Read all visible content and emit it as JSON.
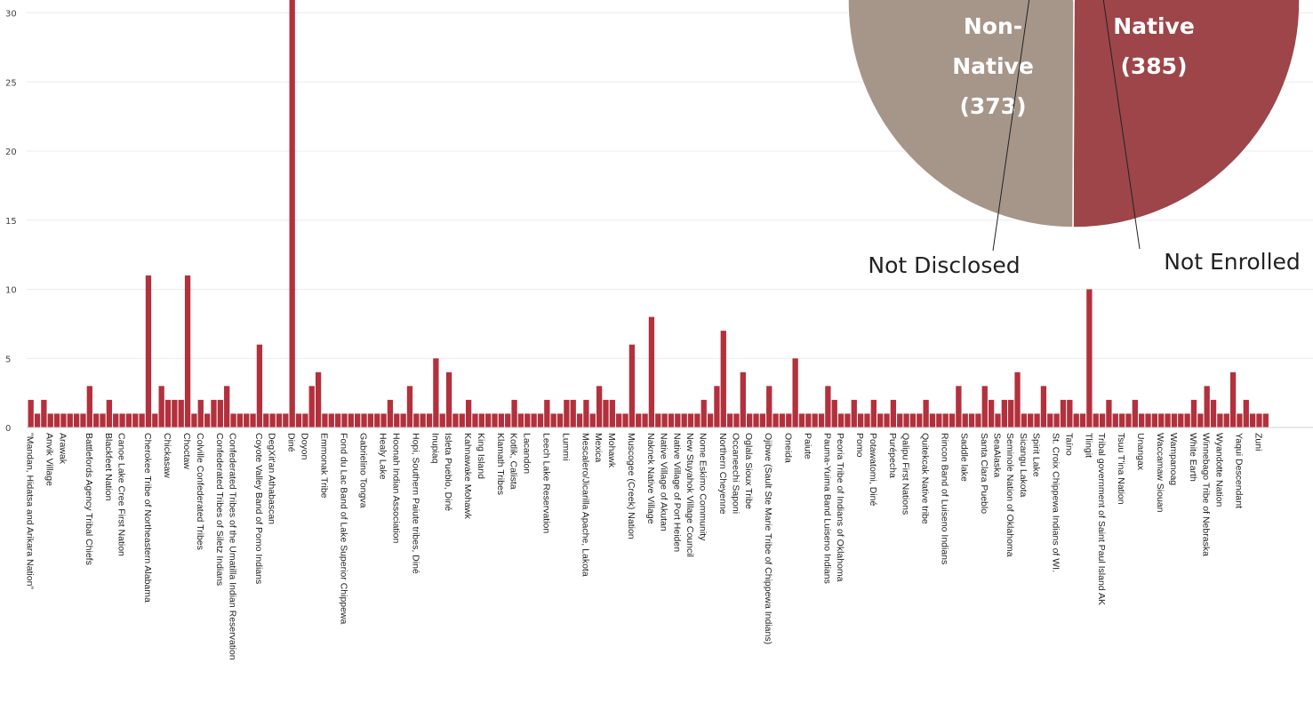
{
  "chart_data": [
    {
      "type": "bar",
      "ylim": [
        0,
        31
      ],
      "yticks": [
        0,
        5,
        10,
        15,
        20,
        25,
        30
      ],
      "grid": true,
      "colors": {
        "bar": "#b3303d"
      },
      "categories": [
        "\"Mandan, Hidatsa and Arikara Nation\"",
        "",
        "",
        "Anvik Village",
        "",
        "Arawak",
        "",
        "",
        "",
        "Battlefords Agency Tribal Chiefs",
        "",
        "",
        "Blackfeet Nation",
        "",
        "Canoe Lake Cree First Nation",
        "",
        "",
        "",
        "Cherokee Tribe of Northeastern Alabama",
        "",
        "",
        "Chickasaw",
        "",
        "",
        "Choctaw",
        "",
        "Colville Confederated Tribes",
        "",
        "",
        "Confederated Tribes of Siletz Indians",
        "",
        "Confederated Tribes of the Umatilla Indian Reservation",
        "",
        "",
        "",
        "Coyote Valley Band of Pomo Indians",
        "",
        "DegXit'an Athabascan",
        "",
        "",
        "Diné",
        "",
        "Doyon",
        "",
        "",
        "Emmonak Tribe",
        "",
        "",
        "Fond du Lac Band of Lake Superior Chippewa",
        "",
        "",
        "Gabrielino Tongva",
        "",
        "",
        "Healy Lake",
        "",
        "Hoonah Indian Association",
        "",
        "",
        "Hopi, Southern Paiute tribes, Diné",
        "",
        "",
        "Inupiaq",
        "",
        "Isleta Pueblo, Diné",
        "",
        "",
        "Kahnawake Mohawk",
        "",
        "King Island",
        "",
        "",
        "Klamath Tribes",
        "",
        "Kotlik, Calista",
        "",
        "Lacandon",
        "",
        "",
        "Leech Lake Reservation",
        "",
        "",
        "Lummi",
        "",
        "",
        "Mescalero/Jicarilla Apache, Lakota",
        "",
        "Mexica",
        "",
        "Mohawk",
        "",
        "",
        "Muscogee (Creek) Nation",
        "",
        "",
        "Naknek Native Village",
        "",
        "Native Village of Akutan",
        "",
        "Native Village of Port Heiden",
        "",
        "New Stuyahok Village Council",
        "",
        "Nome Eskimo Community",
        "",
        "",
        "Northern Cheyenne",
        "",
        "Occaneechi Saponi",
        "",
        "Oglala Sioux Tribe",
        "",
        "",
        "Ojibwe (Sault Ste Marie Tribe of Chippewa Indians)",
        "",
        "",
        "Oneida",
        "",
        "",
        "Paiute",
        "",
        "",
        "Pauma-Yuima Band Luiseno Indians",
        "",
        "Peoria Tribe of Indians of Oklahoma",
        "",
        "",
        "Pomo",
        "",
        "Potawatomi, Diné",
        "",
        "",
        "Purépecha",
        "",
        "Qalipu First Nations",
        "",
        "",
        "Quitekcak Native tribe",
        "",
        "",
        "Rincon Band of Luiseno Indians",
        "",
        "",
        "Saddle lake",
        "",
        "",
        "Santa Clara Pueblo",
        "",
        "SeaAlaska",
        "",
        "Seminole Nation of Oklahoma",
        "",
        "Sicangu Lakota",
        "",
        "Spirit Lake",
        "",
        "",
        "St. Croix Chippewa Indians of WI.",
        "",
        "Taíno",
        "",
        "",
        "Tlingit",
        "",
        "Tribal government of Saint Paul Island AK",
        "",
        "",
        "Tsuu T'ina Nation",
        "",
        "",
        "Unangax",
        "",
        "",
        "Waccamaw Siouan",
        "",
        "Wampanoag",
        "",
        "",
        "White Earth",
        "",
        "Winnebago Tribe of Nebraska",
        "",
        "Wyandotte Nation",
        "",
        "",
        "Yaqui Descendant",
        "",
        "",
        "Zuni",
        ""
      ],
      "values": [
        2,
        1,
        2,
        1,
        1,
        1,
        1,
        1,
        1,
        3,
        1,
        1,
        2,
        1,
        1,
        1,
        1,
        1,
        11,
        1,
        3,
        2,
        2,
        2,
        11,
        1,
        2,
        1,
        2,
        2,
        3,
        1,
        1,
        1,
        1,
        6,
        1,
        1,
        1,
        1,
        31,
        1,
        1,
        3,
        4,
        1,
        1,
        1,
        1,
        1,
        1,
        1,
        1,
        1,
        1,
        2,
        1,
        1,
        3,
        1,
        1,
        1,
        5,
        1,
        4,
        1,
        1,
        2,
        1,
        1,
        1,
        1,
        1,
        1,
        2,
        1,
        1,
        1,
        1,
        2,
        1,
        1,
        2,
        2,
        1,
        2,
        1,
        3,
        2,
        2,
        1,
        1,
        6,
        1,
        1,
        8,
        1,
        1,
        1,
        1,
        1,
        1,
        1,
        2,
        1,
        3,
        7,
        1,
        1,
        4,
        1,
        1,
        1,
        3,
        1,
        1,
        1,
        5,
        1,
        1,
        1,
        1,
        3,
        2,
        1,
        1,
        2,
        1,
        1,
        2,
        1,
        1,
        2,
        1,
        1,
        1,
        1,
        2,
        1,
        1,
        1,
        1,
        3,
        1,
        1,
        1,
        3,
        2,
        1,
        2,
        2,
        4,
        1,
        1,
        1,
        3,
        1,
        1,
        2,
        2,
        1,
        1,
        10,
        1,
        1,
        2,
        1,
        1,
        1,
        2,
        1,
        1,
        1,
        1,
        1,
        1,
        1,
        1,
        2,
        1,
        3,
        2,
        1,
        1,
        4,
        1,
        2,
        1,
        1,
        1
      ]
    },
    {
      "type": "pie",
      "slices": [
        {
          "label_lines": [
            "Native",
            "(385)"
          ],
          "value": 385,
          "color": "#9e4549"
        },
        {
          "label_lines": [
            "Non-",
            "Native",
            "(373)"
          ],
          "value": 373,
          "color": "#a6968a"
        },
        {
          "label": "Not Disclosed",
          "inner_label": "Not Disclosed",
          "value": 8,
          "color": "#6f625c"
        },
        {
          "label": "Not Enrolled",
          "inner_label": "Not Enrolled",
          "value": 3,
          "color": "#c99a9a"
        }
      ]
    }
  ]
}
